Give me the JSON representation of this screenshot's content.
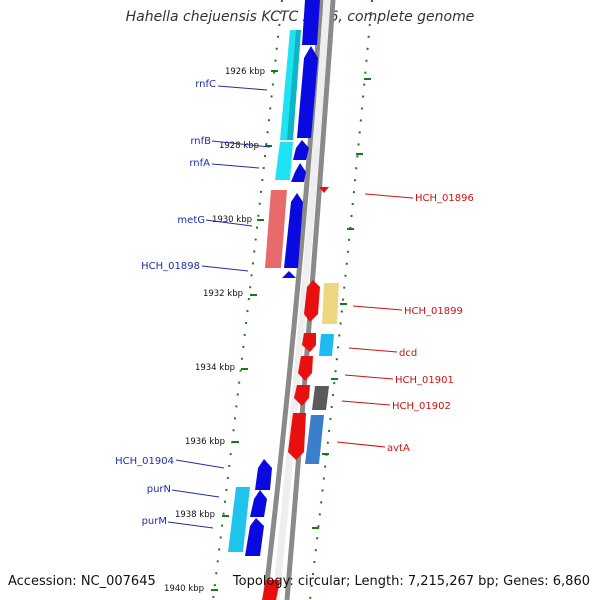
{
  "title": "Hahella chejuensis KCTC 2396, complete genome",
  "accession": "Accession: NC_007645",
  "topology_line": "Topology: circular; Length: 7,215,267 bp; Genes: 6,860",
  "colors": {
    "backbone": "#888888",
    "tick_green": "#1a7a1a",
    "label_blue": "#1f2fa8",
    "label_red": "#cc1111",
    "gene_blue": "#0a0ae0",
    "gene_cyan": "#19d6f0",
    "gene_red": "#e80f0f",
    "gene_salmon": "#e86a6a",
    "gene_yellow": "#ecd67f",
    "gene_gray": "#5a5a5a",
    "gene_steelblue": "#3b7ec9"
  },
  "kbp_labels": [
    "1926 kbp",
    "1928 kbp",
    "1930 kbp",
    "1932 kbp",
    "1934 kbp",
    "1936 kbp",
    "1938 kbp",
    "1940 kbp"
  ],
  "left_genes": [
    "rnfC",
    "rnfB",
    "rnfA",
    "metG",
    "HCH_01898",
    "HCH_01904",
    "purN",
    "purM"
  ],
  "right_genes": [
    "HCH_01896",
    "HCH_01899",
    "dcd",
    "HCH_01901",
    "HCH_01902",
    "avtA"
  ]
}
